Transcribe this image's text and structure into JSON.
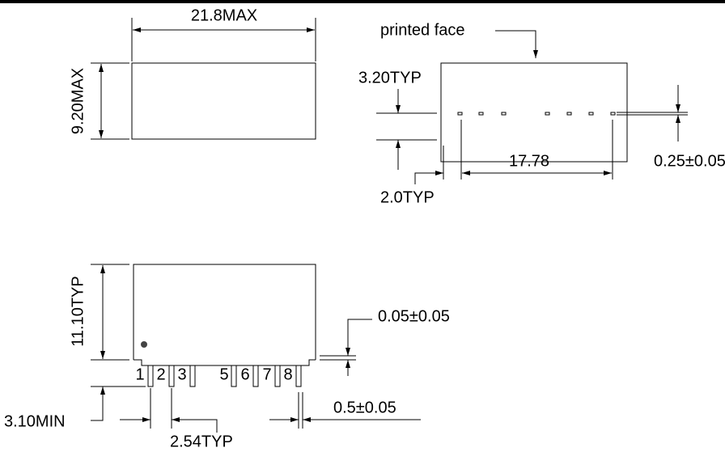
{
  "top_view": {
    "length": "21.8MAX",
    "width": "9.20MAX"
  },
  "face_view": {
    "printed_face": "printed face",
    "pad_height": "3.20TYP",
    "pin_span": "17.78",
    "pad_size": "0.25±0.05",
    "edge_offset": "2.0TYP"
  },
  "side_view": {
    "height": "11.10TYP",
    "standoff": "0.05±0.05",
    "pin_width": "0.5±0.05",
    "pin_length": "3.10MIN",
    "pitch": "2.54TYP",
    "pins": [
      "1",
      "2",
      "3",
      "5",
      "6",
      "7",
      "8"
    ]
  }
}
